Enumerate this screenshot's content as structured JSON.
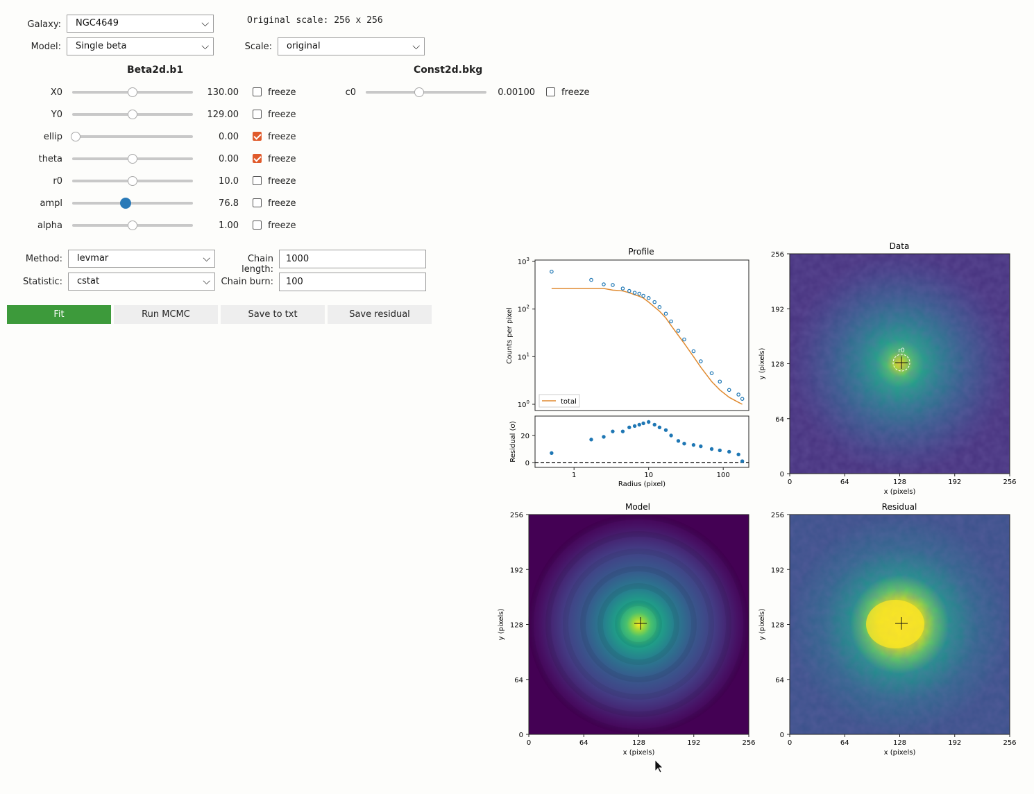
{
  "top": {
    "galaxy_label": "Galaxy:",
    "galaxy_value": "NGC4649",
    "model_label": "Model:",
    "model_value": "Single beta",
    "original_scale": "Original scale: 256 x 256",
    "scale_label": "Scale:",
    "scale_value": "original"
  },
  "beta": {
    "title": "Beta2d.b1",
    "freeze_label": "freeze",
    "params": [
      {
        "name": "X0",
        "value": "130.00",
        "slider": 0.5,
        "frozen": false,
        "active": false
      },
      {
        "name": "Y0",
        "value": "129.00",
        "slider": 0.5,
        "frozen": false,
        "active": false
      },
      {
        "name": "ellip",
        "value": "0.00",
        "slider": 0.0,
        "frozen": true,
        "active": false
      },
      {
        "name": "theta",
        "value": "0.00",
        "slider": 0.5,
        "frozen": true,
        "active": false
      },
      {
        "name": "r0",
        "value": "10.0",
        "slider": 0.5,
        "frozen": false,
        "active": false
      },
      {
        "name": "ampl",
        "value": "76.8",
        "slider": 0.44,
        "frozen": false,
        "active": true
      },
      {
        "name": "alpha",
        "value": "1.00",
        "slider": 0.5,
        "frozen": false,
        "active": false
      }
    ]
  },
  "const": {
    "title": "Const2d.bkg",
    "param": {
      "name": "c0",
      "value": "0.00100",
      "slider": 0.44,
      "frozen": false
    }
  },
  "fit": {
    "method_label": "Method:",
    "method_value": "levmar",
    "statistic_label": "Statistic:",
    "statistic_value": "cstat",
    "chain_length_label": "Chain length:",
    "chain_length_value": "1000",
    "chain_burn_label": "Chain burn:",
    "chain_burn_value": "100"
  },
  "buttons": {
    "fit": "Fit",
    "mcmc": "Run MCMC",
    "save_txt": "Save to txt",
    "save_residual": "Save residual"
  },
  "colors": {
    "accent_green": "#3d9a3b",
    "checkbox_orange": "#e05a2b",
    "slider_blue": "#2a7ab8",
    "series_blue": "#1f77b4",
    "model_orange": "#e08a30"
  },
  "chart_data": [
    {
      "type": "scatter",
      "title": "Profile",
      "ylabel": "Counts per pixel",
      "yscale": "log",
      "xscale": "log",
      "ylim": [
        1,
        1000
      ],
      "yticks": [
        "10^3",
        "10^2",
        "10^1",
        "10^0"
      ],
      "legend": [
        "total"
      ],
      "legend_position": "lower-left",
      "data_radius": [
        0.5,
        1.7,
        2.5,
        3.3,
        4.5,
        5.5,
        6.5,
        7.5,
        8.5,
        10,
        12,
        14,
        17,
        20,
        25,
        30,
        40,
        50,
        70,
        90,
        120,
        160,
        180
      ],
      "data_counts": [
        610,
        410,
        330,
        320,
        270,
        240,
        220,
        210,
        190,
        170,
        140,
        110,
        80,
        55,
        35,
        23,
        13,
        8,
        4.5,
        3,
        2,
        1.6,
        1.3
      ],
      "model_counts": [
        270,
        270,
        270,
        250,
        240,
        220,
        200,
        185,
        170,
        140,
        110,
        90,
        65,
        45,
        28,
        19,
        10,
        6,
        3,
        2,
        1.4,
        1.1,
        1.0
      ]
    },
    {
      "type": "scatter",
      "title": "",
      "xlabel": "Radius (pixel)",
      "ylabel": "Residual (σ)",
      "xscale": "log",
      "xticks": [
        "1",
        "10",
        "100"
      ],
      "yticks": [
        "0",
        "20"
      ],
      "ylim": [
        -2,
        32
      ],
      "data_radius": [
        0.5,
        1.7,
        2.5,
        3.3,
        4.5,
        5.5,
        6.5,
        7.5,
        8.5,
        10,
        12,
        14,
        17,
        20,
        25,
        30,
        40,
        50,
        70,
        90,
        120,
        160,
        180
      ],
      "residual": [
        7,
        17,
        19,
        23,
        23,
        26,
        27,
        28,
        29,
        30,
        28,
        26,
        24,
        20,
        16,
        14,
        13,
        12,
        10,
        9,
        8,
        6,
        1
      ]
    },
    {
      "type": "heatmap",
      "title": "Data",
      "xlabel": "x (pixels)",
      "ylabel": "y (pixels)",
      "xticks": [
        "0",
        "64",
        "128",
        "192",
        "256"
      ],
      "yticks": [
        "256",
        "192",
        "128",
        "64",
        "0"
      ],
      "annotation": "r0"
    },
    {
      "type": "heatmap",
      "title": "Model",
      "xlabel": "x (pixels)",
      "ylabel": "y (pixels)",
      "xticks": [
        "0",
        "64",
        "128",
        "192",
        "256"
      ],
      "yticks": [
        "256",
        "192",
        "128",
        "64",
        "0"
      ]
    },
    {
      "type": "heatmap",
      "title": "Residual",
      "xlabel": "x (pixels)",
      "ylabel": "y (pixels)",
      "xticks": [
        "0",
        "64",
        "128",
        "192",
        "256"
      ],
      "yticks": [
        "256",
        "192",
        "128",
        "64",
        "0"
      ]
    }
  ]
}
